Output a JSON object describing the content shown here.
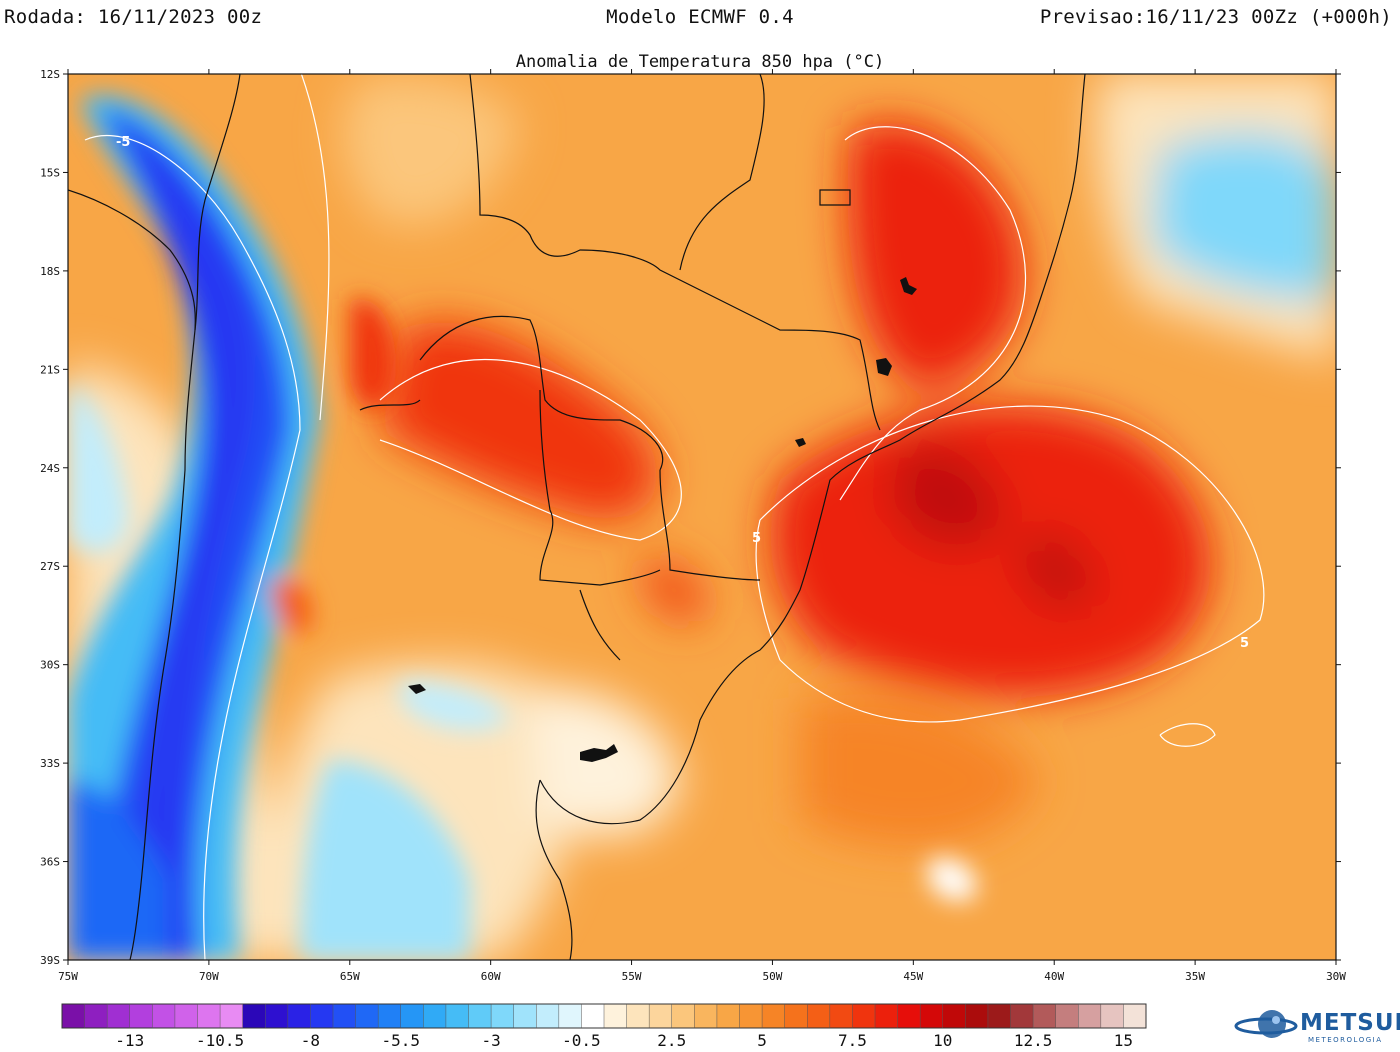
{
  "header": {
    "left": "Rodada: 16/11/2023 00z",
    "center": "Modelo ECMWF 0.4",
    "right": "Previsao:16/11/23 00Zz (+000h)"
  },
  "map": {
    "title": "Anomalia de Temperatura 850 hpa (°C)",
    "lat_labels": [
      "12S",
      "15S",
      "18S",
      "21S",
      "24S",
      "27S",
      "30S",
      "33S",
      "36S",
      "39S"
    ],
    "lon_labels": [
      "75W",
      "70W",
      "65W",
      "60W",
      "55W",
      "50W",
      "45W",
      "40W",
      "35W",
      "30W"
    ],
    "contour_labels": [
      "-5",
      "5",
      "5"
    ]
  },
  "colorbar": {
    "colors": [
      "#7a10a8",
      "#8e1fc0",
      "#a02fd2",
      "#b23fde",
      "#c251e6",
      "#d062ea",
      "#dd75ef",
      "#e88bf3",
      "#2b07b8",
      "#2e10d0",
      "#2a22e6",
      "#2538f2",
      "#2250f5",
      "#1f68f6",
      "#2080f6",
      "#2596f6",
      "#30aaf6",
      "#45bcf6",
      "#60cbf8",
      "#7fd8fa",
      "#a0e3fb",
      "#c2edfc",
      "#e0f6fd",
      "#ffffff",
      "#fef2dc",
      "#fde4bc",
      "#fcd59c",
      "#fbc67c",
      "#f9b55e",
      "#f8a646",
      "#f79534",
      "#f68426",
      "#f5721c",
      "#f45f16",
      "#f24a12",
      "#f0340e",
      "#ec200c",
      "#e60e0a",
      "#d40808",
      "#c00808",
      "#ab0c0c",
      "#9c1a1a",
      "#a2383a",
      "#b25a5a",
      "#c47e7e",
      "#d6a0a0",
      "#e6c4c0",
      "#f3e2d8"
    ],
    "labels": [
      "-13",
      "-10.5",
      "-8",
      "-5.5",
      "-3",
      "-0.5",
      "2.5",
      "5",
      "7.5",
      "10",
      "12.5",
      "15"
    ]
  },
  "logo": {
    "text": "METSUL",
    "subtext": "METEOROLOGIA"
  }
}
